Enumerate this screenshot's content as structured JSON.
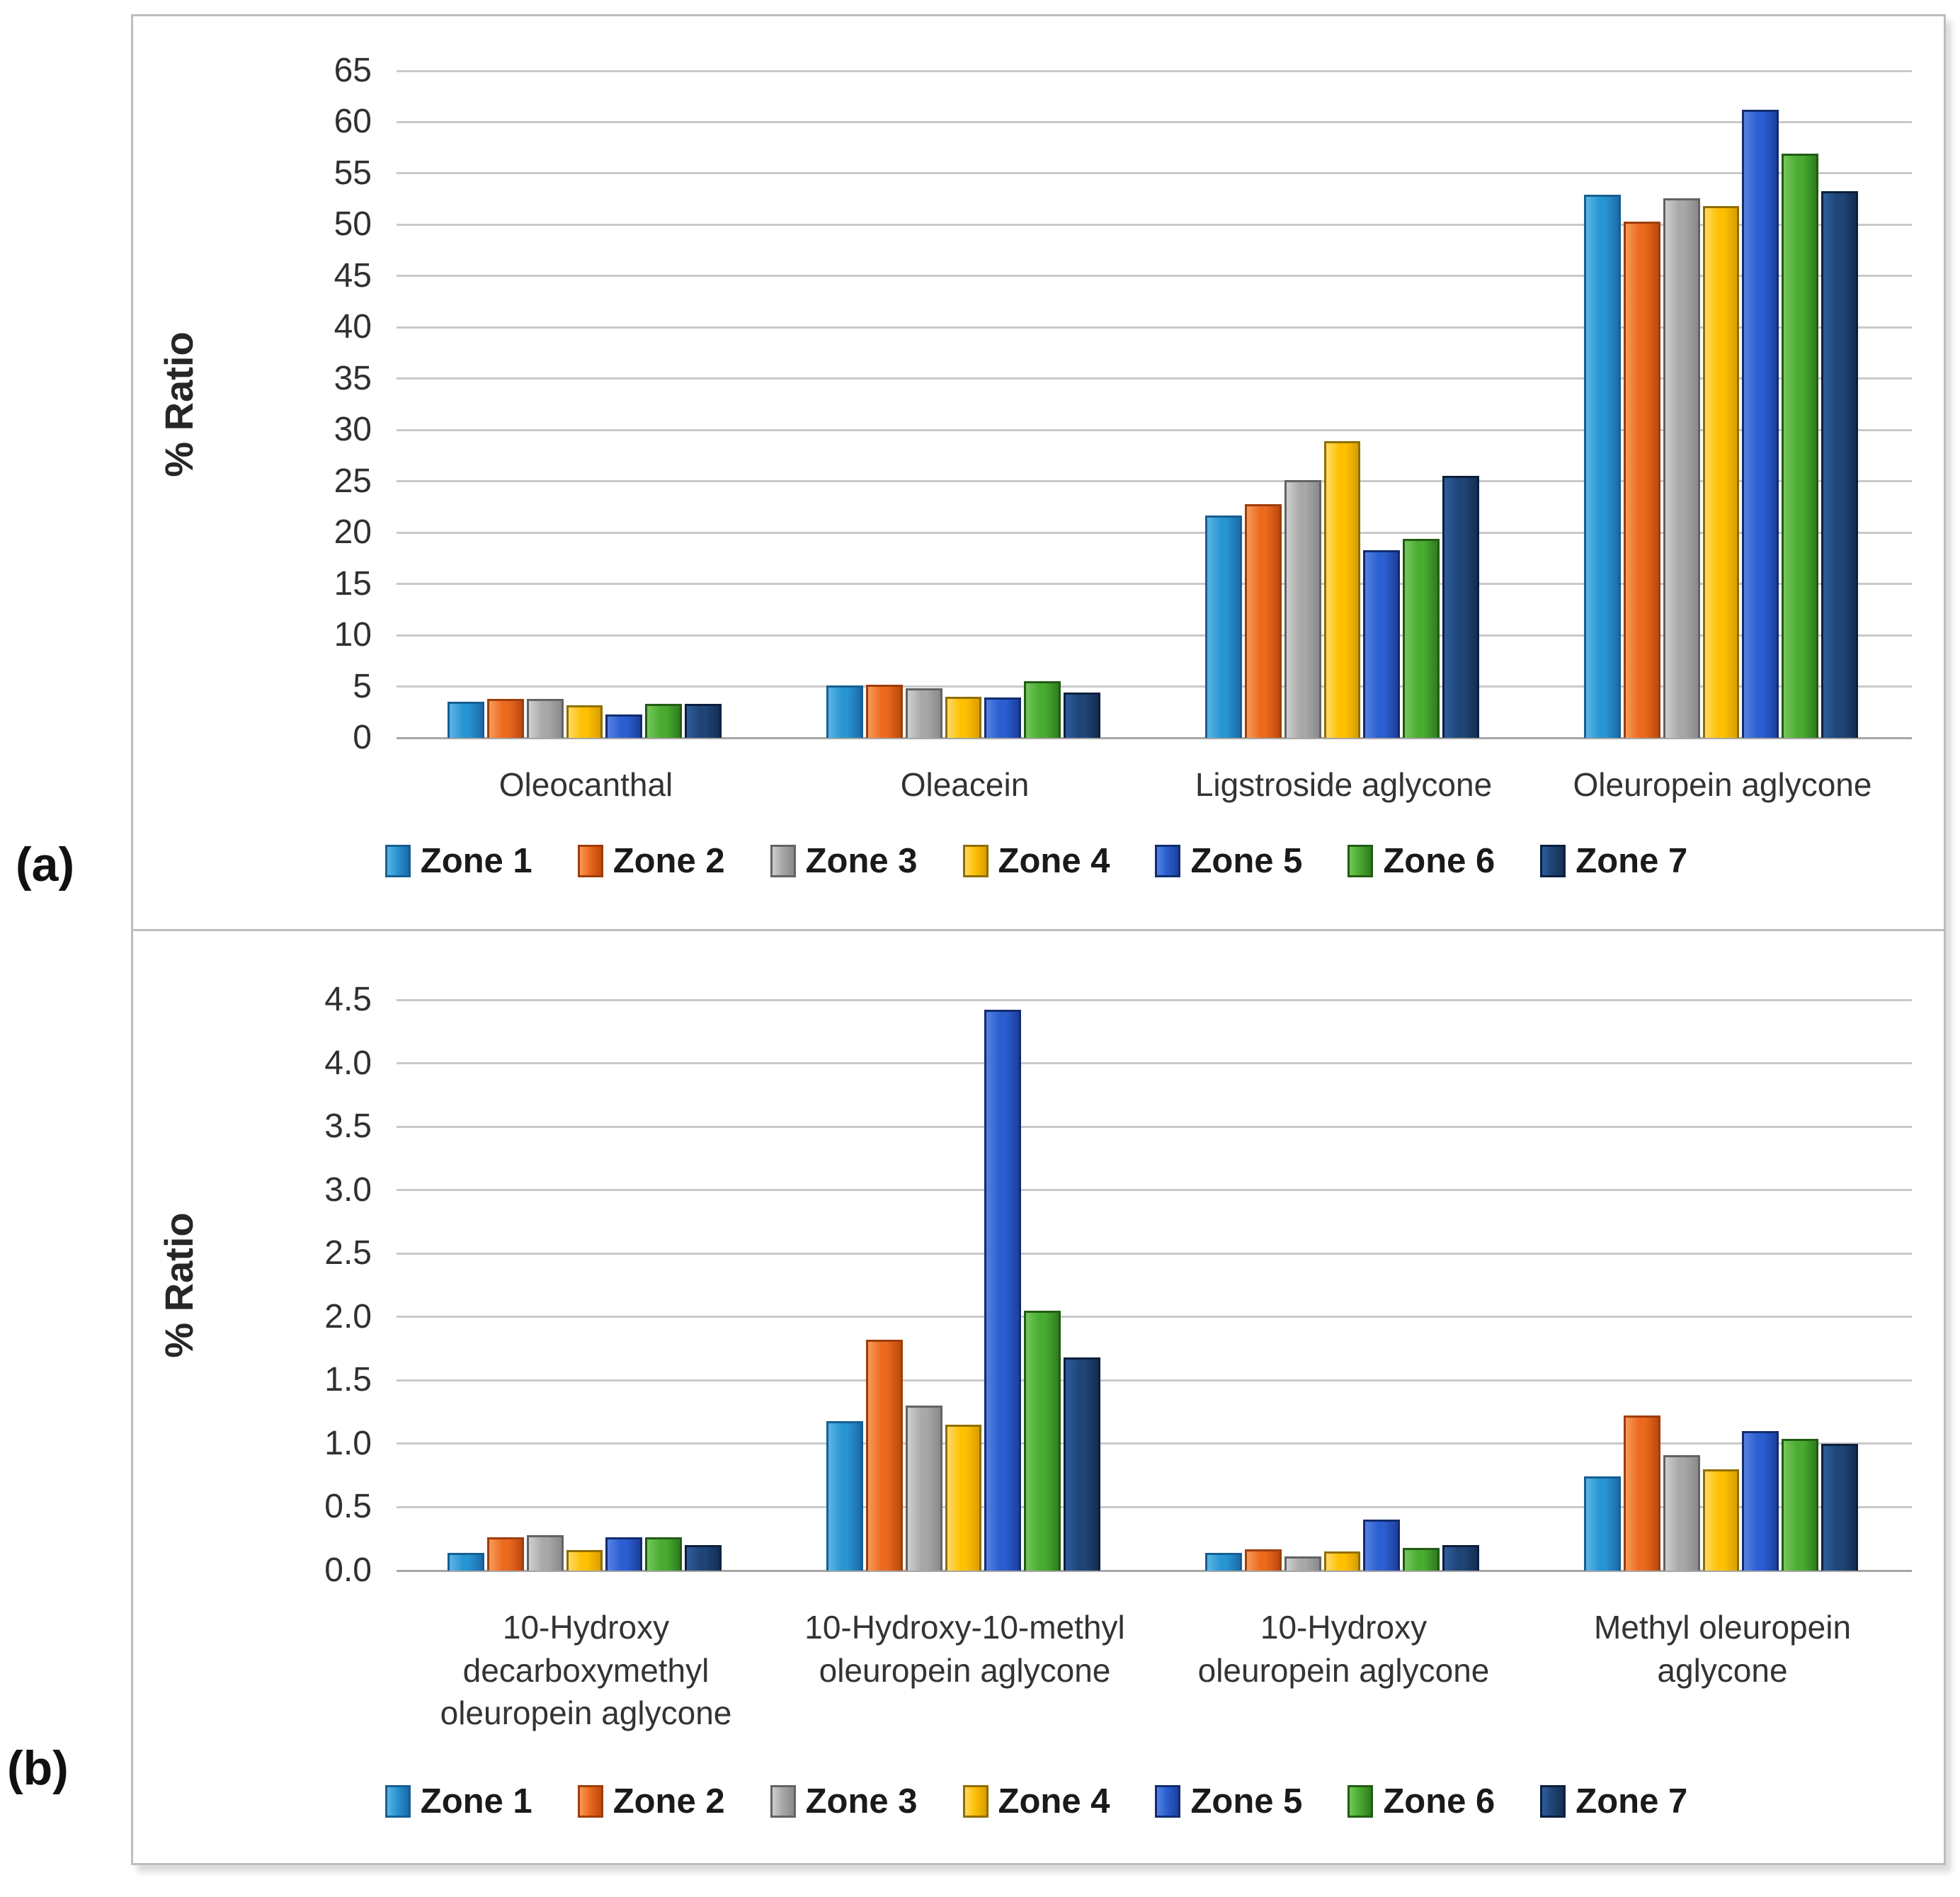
{
  "figure": {
    "panel_a_label": "(a)",
    "panel_b_label": "(b)"
  },
  "zones": [
    {
      "label": "Zone 1",
      "fill": "#2795D1",
      "light": "#5CB5E5",
      "dark": "#1B6CA8",
      "border": "#175E92"
    },
    {
      "label": "Zone 2",
      "fill": "#EB6A1D",
      "light": "#F79A5B",
      "dark": "#BC4A0E",
      "border": "#9E3D0B"
    },
    {
      "label": "Zone 3",
      "fill": "#A8A8A8",
      "light": "#CFCFCF",
      "dark": "#8A8A8A",
      "border": "#636363"
    },
    {
      "label": "Zone 4",
      "fill": "#FFC003",
      "light": "#FFD966",
      "dark": "#D99E00",
      "border": "#8F6E00"
    },
    {
      "label": "Zone 5",
      "fill": "#2B5FD0",
      "light": "#5581E0",
      "dark": "#1C3F9E",
      "border": "#122C6F"
    },
    {
      "label": "Zone 6",
      "fill": "#49AC30",
      "light": "#74C75C",
      "dark": "#2F7D1E",
      "border": "#225B15"
    },
    {
      "label": "Zone 7",
      "fill": "#1F4577",
      "light": "#2F5D9B",
      "dark": "#142E52",
      "border": "#0C1F3D"
    }
  ],
  "chart_data": [
    {
      "type": "bar",
      "panel": "a",
      "ylabel": "% Ratio",
      "ylim": [
        0,
        65
      ],
      "grid": true,
      "legend_position": "bottom",
      "ytick_labels": [
        "0",
        "5",
        "10",
        "15",
        "20",
        "25",
        "30",
        "35",
        "40",
        "45",
        "50",
        "55",
        "60",
        "65"
      ],
      "categories": [
        "Oleocanthal",
        "Oleacein",
        "Ligstroside aglycone",
        "Oleuropein aglycone"
      ],
      "series": [
        {
          "name": "Zone 1",
          "values": [
            3.5,
            5.1,
            21.7,
            52.9
          ]
        },
        {
          "name": "Zone 2",
          "values": [
            3.8,
            5.2,
            22.8,
            50.3
          ]
        },
        {
          "name": "Zone 3",
          "values": [
            3.8,
            4.8,
            25.1,
            52.6
          ]
        },
        {
          "name": "Zone 4",
          "values": [
            3.2,
            4.0,
            28.9,
            51.8
          ]
        },
        {
          "name": "Zone 5",
          "values": [
            2.3,
            3.9,
            18.3,
            61.2
          ]
        },
        {
          "name": "Zone 6",
          "values": [
            3.3,
            5.5,
            19.4,
            56.9
          ]
        },
        {
          "name": "Zone 7",
          "values": [
            3.3,
            4.4,
            25.5,
            53.3
          ]
        }
      ]
    },
    {
      "type": "bar",
      "panel": "b",
      "ylabel": "% Ratio",
      "ylim": [
        0,
        4.5
      ],
      "grid": true,
      "legend_position": "bottom",
      "ytick_labels": [
        "0.0",
        "0.5",
        "1.0",
        "1.5",
        "2.0",
        "2.5",
        "3.0",
        "3.5",
        "4.0",
        "4.5"
      ],
      "categories": [
        [
          "10-Hydroxy",
          "decarboxymethyl",
          "oleuropein aglycone"
        ],
        [
          "10-Hydroxy-10-methyl",
          "oleuropein aglycone"
        ],
        [
          "10-Hydroxy",
          "oleuropein aglycone"
        ],
        [
          "Methyl oleuropein",
          "aglycone"
        ]
      ],
      "series": [
        {
          "name": "Zone 1",
          "values": [
            0.14,
            1.18,
            0.14,
            0.74
          ]
        },
        {
          "name": "Zone 2",
          "values": [
            0.26,
            1.82,
            0.17,
            1.22
          ]
        },
        {
          "name": "Zone 3",
          "values": [
            0.28,
            1.3,
            0.11,
            0.91
          ]
        },
        {
          "name": "Zone 4",
          "values": [
            0.16,
            1.15,
            0.15,
            0.8
          ]
        },
        {
          "name": "Zone 5",
          "values": [
            0.26,
            4.42,
            0.4,
            1.1
          ]
        },
        {
          "name": "Zone 6",
          "values": [
            0.26,
            2.05,
            0.18,
            1.04
          ]
        },
        {
          "name": "Zone 7",
          "values": [
            0.2,
            1.68,
            0.2,
            1.0
          ]
        }
      ]
    }
  ]
}
